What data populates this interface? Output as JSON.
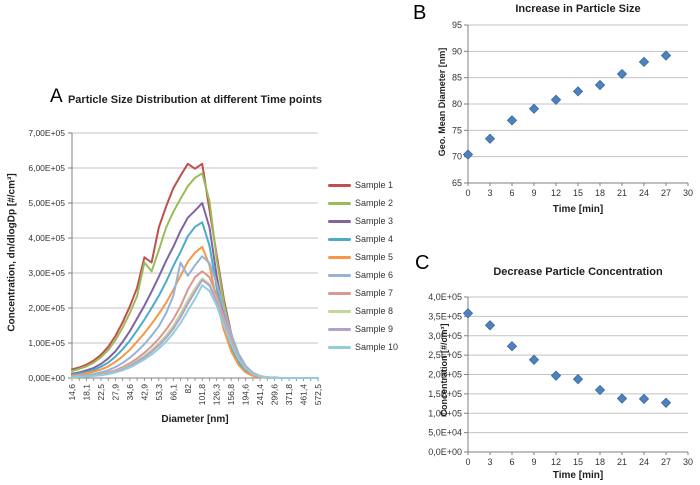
{
  "figure": {
    "background": "#ffffff",
    "gridline_color": "#C3C3C3",
    "axis_color": "#808080",
    "text_color": "#333333"
  },
  "chart_data": [
    {
      "panel_label": "A",
      "type": "line",
      "title": "Particle Size Distribution at different Time points",
      "xlabel": "Diameter [nm]",
      "ylabel": "Concentration, dn/dlogDp [#/cm³]",
      "x_scale": "log-category",
      "grid": "horizontal",
      "legend_position": "right",
      "ylim": [
        0,
        700000
      ],
      "y_ticks": [
        0,
        100000,
        200000,
        300000,
        400000,
        500000,
        600000,
        700000
      ],
      "y_tick_labels": [
        "0,00E+00",
        "1,00E+05",
        "2,00E+05",
        "3,00E+05",
        "4,00E+05",
        "5,00E+05",
        "6,00E+05",
        "7,00E+05"
      ],
      "x_bins": [
        14.6,
        16.3,
        18.1,
        20.2,
        22.5,
        25.1,
        27.9,
        31.1,
        34.6,
        38.6,
        42.9,
        47.8,
        53.3,
        59.3,
        66.1,
        73.6,
        82,
        91.4,
        101.8,
        113.4,
        126.3,
        140.7,
        156.8,
        174.7,
        194.6,
        216.8,
        241.4,
        268.9,
        299.6,
        333.7,
        371.8,
        414.2,
        461.4,
        514,
        572.5
      ],
      "x_tick_labels": [
        "14,6",
        "18,1",
        "22,5",
        "27,9",
        "34,6",
        "42,9",
        "53,3",
        "66,1",
        "82",
        "101,8",
        "126,3",
        "156,8",
        "194,6",
        "241,4",
        "299,6",
        "371,8",
        "461,4",
        "572,5"
      ],
      "series": [
        {
          "name": "Sample 1",
          "color": "#C0504D",
          "values": [
            25000,
            30000,
            38000,
            50000,
            66000,
            89000,
            120000,
            159000,
            205000,
            258000,
            345000,
            330000,
            430000,
            490000,
            542000,
            578000,
            612000,
            598000,
            612000,
            480000,
            352000,
            225000,
            127000,
            63000,
            27000,
            10000,
            4000,
            2000,
            1000,
            0,
            0,
            0,
            0,
            0,
            0
          ]
        },
        {
          "name": "Sample 2",
          "color": "#9BBB59",
          "values": [
            20000,
            26000,
            33000,
            44000,
            59000,
            80000,
            108000,
            144000,
            186000,
            234000,
            330000,
            305000,
            365000,
            430000,
            475000,
            512000,
            548000,
            572000,
            585000,
            505000,
            340000,
            213000,
            120000,
            60000,
            26000,
            10000,
            4000,
            1000,
            0,
            0,
            0,
            0,
            0,
            0,
            0
          ]
        },
        {
          "name": "Sample 3",
          "color": "#8064A2",
          "values": [
            12000,
            16000,
            22000,
            29000,
            40000,
            56000,
            76000,
            103000,
            134000,
            170000,
            207000,
            247000,
            289000,
            335000,
            375000,
            420000,
            458000,
            478000,
            500000,
            430000,
            292000,
            183000,
            103000,
            51000,
            22000,
            8000,
            3000,
            1000,
            0,
            0,
            0,
            0,
            0,
            0,
            0
          ]
        },
        {
          "name": "Sample 4",
          "color": "#4BACC6",
          "values": [
            9000,
            13000,
            17000,
            23000,
            32000,
            44000,
            61000,
            82000,
            107000,
            136000,
            167000,
            200000,
            235000,
            275000,
            320000,
            360000,
            405000,
            432000,
            445000,
            378000,
            258000,
            161000,
            91000,
            45000,
            19000,
            7000,
            2000,
            1000,
            0,
            0,
            0,
            0,
            0,
            0,
            0
          ]
        },
        {
          "name": "Sample 5",
          "color": "#F79646",
          "values": [
            7000,
            9000,
            13000,
            18000,
            24000,
            33000,
            46000,
            62000,
            81000,
            104000,
            128000,
            155000,
            183000,
            215000,
            252000,
            292000,
            332000,
            358000,
            375000,
            322000,
            220000,
            137000,
            77000,
            38000,
            16000,
            6000,
            2000,
            0,
            0,
            0,
            0,
            0,
            0,
            0,
            0
          ]
        },
        {
          "name": "Sample 6",
          "color": "#95B3D7",
          "values": [
            4000,
            6000,
            8000,
            11000,
            16000,
            22000,
            31000,
            43000,
            58000,
            76000,
            97000,
            121000,
            148000,
            185000,
            235000,
            330000,
            292000,
            322000,
            348000,
            328000,
            270000,
            197000,
            126000,
            71000,
            35000,
            15000,
            6000,
            2000,
            0,
            0,
            0,
            0,
            0,
            0,
            0
          ]
        },
        {
          "name": "Sample 7",
          "color": "#D99694",
          "values": [
            3000,
            4000,
            6000,
            8000,
            11000,
            16000,
            22000,
            31000,
            42000,
            56000,
            72000,
            91000,
            112000,
            138000,
            168000,
            205000,
            252000,
            288000,
            305000,
            288000,
            238000,
            174000,
            111000,
            63000,
            31000,
            13000,
            5000,
            2000,
            0,
            0,
            0,
            0,
            0,
            0,
            0
          ]
        },
        {
          "name": "Sample 8",
          "color": "#C3D69B",
          "values": [
            3000,
            4000,
            5000,
            7000,
            10000,
            14000,
            19000,
            27000,
            37000,
            49000,
            63000,
            80000,
            99000,
            122000,
            149000,
            183000,
            222000,
            256000,
            285000,
            268000,
            223000,
            163000,
            104000,
            59000,
            29000,
            12000,
            5000,
            2000,
            0,
            0,
            0,
            0,
            0,
            0,
            0
          ]
        },
        {
          "name": "Sample 9",
          "color": "#B3A2C7",
          "values": [
            2000,
            3000,
            5000,
            7000,
            9000,
            13000,
            18000,
            25000,
            34000,
            46000,
            59000,
            75000,
            93000,
            115000,
            141000,
            173000,
            212000,
            246000,
            280000,
            264000,
            219000,
            160000,
            102000,
            58000,
            28000,
            12000,
            4000,
            1000,
            0,
            0,
            0,
            0,
            0,
            0,
            0
          ]
        },
        {
          "name": "Sample 10",
          "color": "#92CDDC",
          "values": [
            2000,
            3000,
            4000,
            6000,
            8000,
            11000,
            16000,
            22000,
            30000,
            41000,
            53000,
            67000,
            84000,
            104000,
            128000,
            157000,
            192000,
            226000,
            265000,
            249000,
            207000,
            151000,
            97000,
            55000,
            27000,
            11000,
            4000,
            1000,
            0,
            0,
            0,
            0,
            0,
            0,
            0
          ]
        }
      ]
    },
    {
      "panel_label": "B",
      "type": "scatter",
      "title": "Increase in Particle Size",
      "xlabel": "Time [min]",
      "ylabel": "Geo. Mean Diameter [nm]",
      "marker": "diamond",
      "marker_color": "#4F81BD",
      "marker_edge": "#3A6BA5",
      "grid": "horizontal",
      "xlim": [
        0,
        30
      ],
      "ylim": [
        65,
        95
      ],
      "x_ticks": [
        0,
        3,
        6,
        9,
        12,
        15,
        18,
        21,
        24,
        27,
        30
      ],
      "y_ticks": [
        65,
        70,
        75,
        80,
        85,
        90,
        95
      ],
      "x": [
        0,
        3,
        6,
        9,
        12,
        15,
        18,
        21,
        24,
        27
      ],
      "y": [
        70.4,
        73.4,
        76.9,
        79.1,
        80.8,
        82.4,
        83.6,
        85.7,
        88,
        89.2
      ]
    },
    {
      "panel_label": "C",
      "type": "scatter",
      "title": "Decrease Particle Concentration",
      "xlabel": "Time [min]",
      "ylabel": "Concentration [#/cm³]",
      "marker": "diamond",
      "marker_color": "#4F81BD",
      "marker_edge": "#3A6BA5",
      "grid": "horizontal",
      "xlim": [
        0,
        30
      ],
      "ylim": [
        0,
        400000
      ],
      "x_ticks": [
        0,
        3,
        6,
        9,
        12,
        15,
        18,
        21,
        24,
        27,
        30
      ],
      "y_tick_values": [
        0,
        50000,
        100000,
        150000,
        200000,
        250000,
        300000,
        350000,
        400000
      ],
      "y_tick_labels": [
        "0,0E+00",
        "5,0E+04",
        "1,0E+05",
        "1,5E+05",
        "2,0E+05",
        "2,5E+05",
        "3,0E+05",
        "3,5E+05",
        "4,0E+05"
      ],
      "x": [
        0,
        3,
        6,
        9,
        12,
        15,
        18,
        21,
        24,
        27
      ],
      "y": [
        358000,
        327000,
        273000,
        238000,
        197000,
        188000,
        160000,
        138000,
        137000,
        127000
      ]
    }
  ]
}
